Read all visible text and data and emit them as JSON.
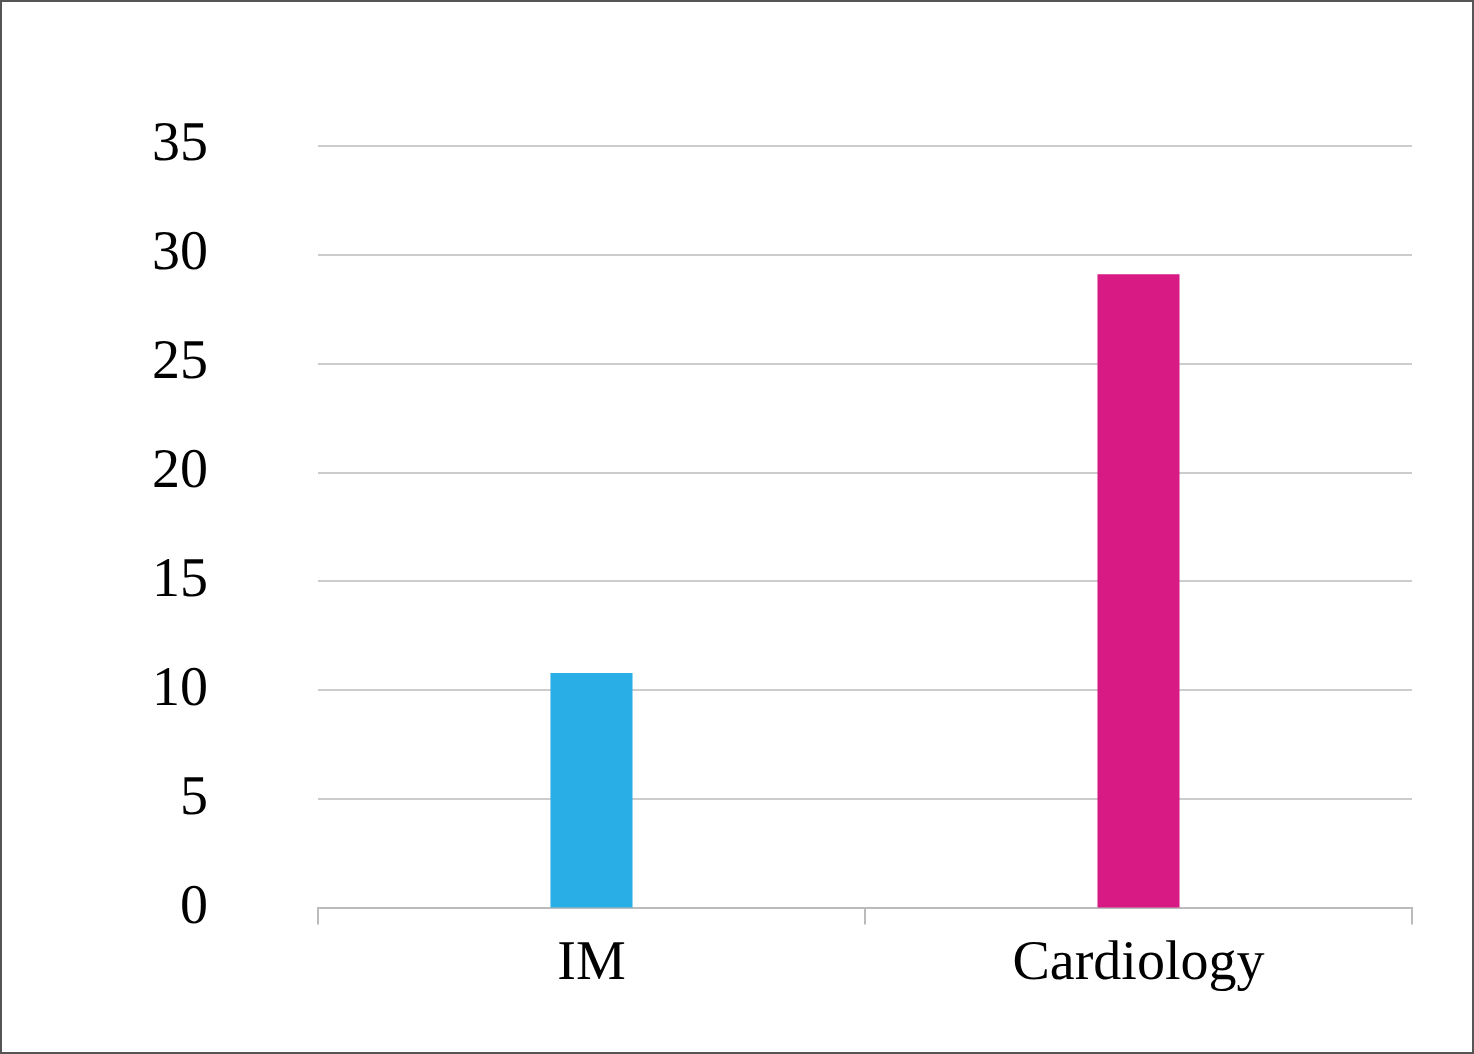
{
  "chart_data": {
    "type": "bar",
    "categories": [
      "IM",
      "Cardiology"
    ],
    "values": [
      10.8,
      29.1
    ],
    "colors": [
      "#29aee6",
      "#d81b84"
    ],
    "ylim": [
      0,
      35
    ],
    "yticks": [
      0,
      5,
      10,
      15,
      20,
      25,
      30,
      35
    ],
    "grid": "y",
    "legend": false
  }
}
